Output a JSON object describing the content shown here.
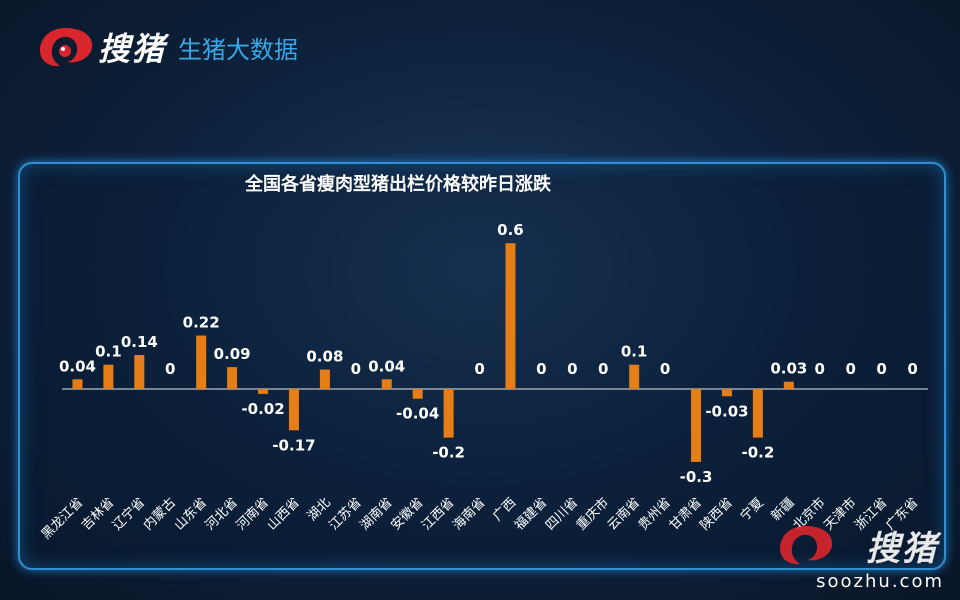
{
  "header": {
    "brand": "搜猪",
    "subtitle": "生猪大数据"
  },
  "watermark": {
    "brand": "搜猪",
    "url": "soozhu.com"
  },
  "colors": {
    "bar": "#e67e17",
    "axis": "#e8e8e8",
    "label": "#ffffff",
    "panel_border": "#2f8fd0",
    "logo_red": "#d9262c"
  },
  "chart_data": {
    "type": "bar",
    "title": "全国各省瘦肉型猪出栏价格较昨日涨跌",
    "xlabel": "",
    "ylabel": "",
    "ylim": [
      -0.35,
      0.65
    ],
    "grid": false,
    "legend": "none",
    "categories": [
      "黑龙江省",
      "吉林省",
      "辽宁省",
      "内蒙古",
      "山东省",
      "河北省",
      "河南省",
      "山西省",
      "湖北",
      "江苏省",
      "湖南省",
      "安徽省",
      "江西省",
      "海南省",
      "广西",
      "福建省",
      "四川省",
      "重庆市",
      "云南省",
      "贵州省",
      "甘肃省",
      "陕西省",
      "宁夏",
      "新疆",
      "北京市",
      "天津市",
      "浙江省",
      "广东省"
    ],
    "values": [
      0.04,
      0.1,
      0.14,
      0,
      0.22,
      0.09,
      -0.02,
      -0.17,
      0.08,
      0,
      0.04,
      -0.04,
      -0.2,
      0,
      0.6,
      0,
      0,
      0,
      0.1,
      0,
      -0.3,
      -0.03,
      -0.2,
      0.03,
      0,
      0,
      0,
      0
    ],
    "value_labels": [
      "0.04",
      "0.1",
      "0.14",
      "0",
      "0.22",
      "0.09",
      "-0.02",
      "-0.17",
      "0.08",
      "0",
      "0.04",
      "-0.04",
      "-0.2",
      "0",
      "0.6",
      "0",
      "0",
      "0",
      "0.1",
      "0",
      "-0.3",
      "-0.03",
      "-0.2",
      "0.03",
      "0",
      "0",
      "0",
      "0"
    ]
  }
}
